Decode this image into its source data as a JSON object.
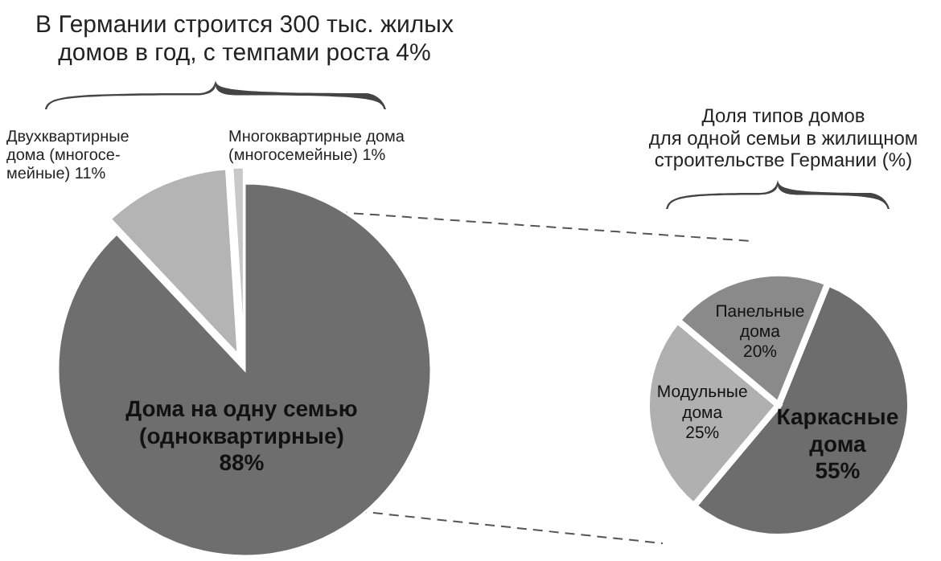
{
  "chart_data": [
    {
      "type": "pie",
      "title": "В Германии строится 300 тыс. жилых\nдомов в год, с темпами роста 4%",
      "categories": [
        "Дома на одну семью\n(одноквартирные)",
        "Двухквартирные\nдома (многосе-\nмейные)",
        "Многоквартирные дома\n(многосемейные)"
      ],
      "values": [
        88,
        11,
        1
      ],
      "colors": [
        "#6e6e6e",
        "#b4b4b4",
        "#c8c8c8"
      ],
      "value_labels": [
        "88%",
        "11%",
        "1%"
      ]
    },
    {
      "type": "pie",
      "title": "Доля типов домов\nдля одной семьи в жилищном\nстроительстве Германии (%)",
      "categories": [
        "Каркасные\nдома",
        "Модульные\nдома",
        "Панельные\nдома"
      ],
      "values": [
        55,
        25,
        20
      ],
      "colors": [
        "#6d6d6d",
        "#b0b0b0",
        "#8a8a8a"
      ],
      "value_labels": [
        "55%",
        "25%",
        "20%"
      ]
    }
  ]
}
